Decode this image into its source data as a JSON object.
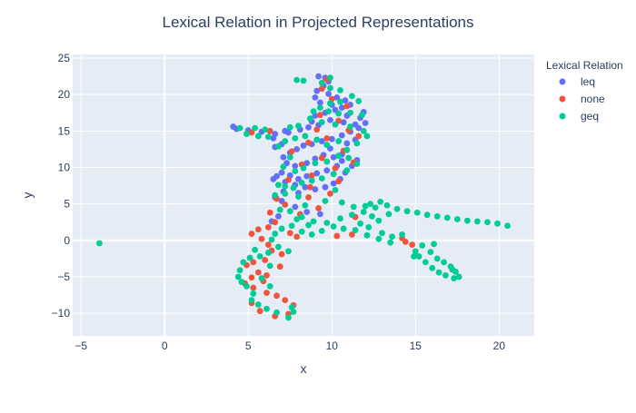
{
  "chart_data": {
    "type": "scatter",
    "title": "Lexical Relation in Projected Representations",
    "xlabel": "x",
    "ylabel": "y",
    "xlim": [
      -5.5,
      22.1
    ],
    "ylim": [
      -13.1,
      25.5
    ],
    "xticks": [
      -5,
      0,
      5,
      10,
      15,
      20
    ],
    "yticks": [
      -10,
      -5,
      0,
      5,
      10,
      15,
      20,
      25
    ],
    "grid": true,
    "plot_background": "#e5ecf6",
    "legend": {
      "title": "Lexical Relation",
      "placement": "right"
    },
    "series": [
      {
        "name": "leq",
        "color": "#636efa",
        "points": [
          [
            9.2,
            22.5
          ],
          [
            9.6,
            22.3
          ],
          [
            9.8,
            21.8
          ],
          [
            9.5,
            21.2
          ],
          [
            9.1,
            20.5
          ],
          [
            9.8,
            20.1
          ],
          [
            10.3,
            19.6
          ],
          [
            10.8,
            19.2
          ],
          [
            11.1,
            18.6
          ],
          [
            10.6,
            18.2
          ],
          [
            10.2,
            17.9
          ],
          [
            9.6,
            17.5
          ],
          [
            9.0,
            17.1
          ],
          [
            8.8,
            16.3
          ],
          [
            9.2,
            15.8
          ],
          [
            9.9,
            16.5
          ],
          [
            10.7,
            16.2
          ],
          [
            11.4,
            15.9
          ],
          [
            11.7,
            16.8
          ],
          [
            11.9,
            17.6
          ],
          [
            12.0,
            16.1
          ],
          [
            11.6,
            15.4
          ],
          [
            11.1,
            14.9
          ],
          [
            10.6,
            14.4
          ],
          [
            10.0,
            13.9
          ],
          [
            9.4,
            13.6
          ],
          [
            8.8,
            13.2
          ],
          [
            8.3,
            13.0
          ],
          [
            7.9,
            12.5
          ],
          [
            7.5,
            12.0
          ],
          [
            7.1,
            11.4
          ],
          [
            7.3,
            10.6
          ],
          [
            7.8,
            10.2
          ],
          [
            8.5,
            10.6
          ],
          [
            9.0,
            11.2
          ],
          [
            9.5,
            11.7
          ],
          [
            10.1,
            11.4
          ],
          [
            10.6,
            10.9
          ],
          [
            10.3,
            10.2
          ],
          [
            9.7,
            9.6
          ],
          [
            9.1,
            9.2
          ],
          [
            8.5,
            8.8
          ],
          [
            8.0,
            8.4
          ],
          [
            7.5,
            8.9
          ],
          [
            7.0,
            9.3
          ],
          [
            6.7,
            8.8
          ],
          [
            7.2,
            8.0
          ],
          [
            7.8,
            7.6
          ],
          [
            8.4,
            7.3
          ],
          [
            9.0,
            7.0
          ],
          [
            9.6,
            7.3
          ],
          [
            10.1,
            7.8
          ],
          [
            10.5,
            8.4
          ],
          [
            10.8,
            9.3
          ],
          [
            11.2,
            10.2
          ],
          [
            11.5,
            11.0
          ],
          [
            8.6,
            15.5
          ],
          [
            8.1,
            15.2
          ],
          [
            7.4,
            14.8
          ],
          [
            6.6,
            14.6
          ],
          [
            5.8,
            14.9
          ],
          [
            5.0,
            15.1
          ],
          [
            4.3,
            15.3
          ],
          [
            4.1,
            15.6
          ],
          [
            7.0,
            13.2
          ],
          [
            6.6,
            12.8
          ],
          [
            6.5,
            14.0
          ],
          [
            7.2,
            15.0
          ],
          [
            6.5,
            8.4
          ],
          [
            6.6,
            5.9
          ],
          [
            7.0,
            5.4
          ],
          [
            7.8,
            4.6
          ],
          [
            8.5,
            3.9
          ],
          [
            9.3,
            3.6
          ],
          [
            8.0,
            6.5
          ],
          [
            7.1,
            6.7
          ],
          [
            6.8,
            3.3
          ],
          [
            6.4,
            2.6
          ],
          [
            10.6,
            11.8
          ],
          [
            9.9,
            12.6
          ],
          [
            11.4,
            13.8
          ],
          [
            10.9,
            13.3
          ],
          [
            10.0,
            18.6
          ],
          [
            9.3,
            18.9
          ],
          [
            9.0,
            19.6
          ],
          [
            10.9,
            17.1
          ]
        ]
      },
      {
        "name": "none",
        "color": "#ef553b",
        "points": [
          [
            9.7,
            22.1
          ],
          [
            9.4,
            20.8
          ],
          [
            10.0,
            19.4
          ],
          [
            10.9,
            18.4
          ],
          [
            9.3,
            17.2
          ],
          [
            10.4,
            16.4
          ],
          [
            11.0,
            15.1
          ],
          [
            9.7,
            14.0
          ],
          [
            8.6,
            13.4
          ],
          [
            7.6,
            12.2
          ],
          [
            8.2,
            10.4
          ],
          [
            9.4,
            11.3
          ],
          [
            10.2,
            9.9
          ],
          [
            8.8,
            8.9
          ],
          [
            7.4,
            8.3
          ],
          [
            8.7,
            7.3
          ],
          [
            10.4,
            8.1
          ],
          [
            6.3,
            15.0
          ],
          [
            5.2,
            14.8
          ],
          [
            6.7,
            5.7
          ],
          [
            7.2,
            4.9
          ],
          [
            6.3,
            3.8
          ],
          [
            6.6,
            2.5
          ],
          [
            6.2,
            1.8
          ],
          [
            5.6,
            1.5
          ],
          [
            5.2,
            0.9
          ],
          [
            5.8,
            0.2
          ],
          [
            6.2,
            -0.6
          ],
          [
            6.4,
            -1.4
          ],
          [
            7.0,
            -1.9
          ],
          [
            6.0,
            -2.7
          ],
          [
            5.3,
            -3.0
          ],
          [
            4.9,
            -3.4
          ],
          [
            5.6,
            -4.4
          ],
          [
            5.2,
            -5.1
          ],
          [
            6.1,
            -4.8
          ],
          [
            4.8,
            -5.9
          ],
          [
            5.3,
            -6.5
          ],
          [
            6.1,
            -7.2
          ],
          [
            6.7,
            -7.6
          ],
          [
            7.2,
            -8.2
          ],
          [
            7.7,
            -8.9
          ],
          [
            7.4,
            -10.1
          ],
          [
            6.6,
            -10.4
          ],
          [
            5.7,
            -9.7
          ],
          [
            5.2,
            -8.6
          ],
          [
            7.5,
            1.0
          ],
          [
            7.9,
            0.5
          ],
          [
            10.3,
            0.6
          ],
          [
            11.2,
            0.8
          ],
          [
            14.2,
            0.3
          ],
          [
            14.8,
            -0.6
          ],
          [
            14.4,
            -0.2
          ],
          [
            11.4,
            3.2
          ],
          [
            8.1,
            3.6
          ],
          [
            9.2,
            4.4
          ],
          [
            8.6,
            5.9
          ],
          [
            9.9,
            6.4
          ],
          [
            10.7,
            12.3
          ],
          [
            11.3,
            10.7
          ],
          [
            9.1,
            15.2
          ],
          [
            11.6,
            14.3
          ],
          [
            6.9,
            -3.6
          ],
          [
            5.9,
            -5.6
          ]
        ]
      },
      {
        "name": "geq",
        "color": "#00cc96",
        "points": [
          [
            7.9,
            22.0
          ],
          [
            8.3,
            21.9
          ],
          [
            9.9,
            22.3
          ],
          [
            9.4,
            21.6
          ],
          [
            9.9,
            20.9
          ],
          [
            10.5,
            20.6
          ],
          [
            11.2,
            19.8
          ],
          [
            11.6,
            19.1
          ],
          [
            10.5,
            19.0
          ],
          [
            9.9,
            18.8
          ],
          [
            9.3,
            18.2
          ],
          [
            8.9,
            17.7
          ],
          [
            9.8,
            17.7
          ],
          [
            10.4,
            17.4
          ],
          [
            11.1,
            17.5
          ],
          [
            11.8,
            17.2
          ],
          [
            8.7,
            16.7
          ],
          [
            9.4,
            16.2
          ],
          [
            10.2,
            15.9
          ],
          [
            11.1,
            15.6
          ],
          [
            11.9,
            15.0
          ],
          [
            12.1,
            14.3
          ],
          [
            11.5,
            13.3
          ],
          [
            10.9,
            12.4
          ],
          [
            10.4,
            13.6
          ],
          [
            9.7,
            13.1
          ],
          [
            9.1,
            13.8
          ],
          [
            8.4,
            14.3
          ],
          [
            7.8,
            14.0
          ],
          [
            7.2,
            13.6
          ],
          [
            6.8,
            12.9
          ],
          [
            6.2,
            14.2
          ],
          [
            5.6,
            14.3
          ],
          [
            4.9,
            14.6
          ],
          [
            4.5,
            15.4
          ],
          [
            5.4,
            15.4
          ],
          [
            6.0,
            15.2
          ],
          [
            7.5,
            15.5
          ],
          [
            8.0,
            15.7
          ],
          [
            7.5,
            11.4
          ],
          [
            7.1,
            10.1
          ],
          [
            7.8,
            9.5
          ],
          [
            8.3,
            9.9
          ],
          [
            9.0,
            10.6
          ],
          [
            9.7,
            10.8
          ],
          [
            10.4,
            11.6
          ],
          [
            11.0,
            11.3
          ],
          [
            11.5,
            10.5
          ],
          [
            10.9,
            9.6
          ],
          [
            10.1,
            9.1
          ],
          [
            9.4,
            8.5
          ],
          [
            8.8,
            8.2
          ],
          [
            8.2,
            7.9
          ],
          [
            7.7,
            7.2
          ],
          [
            7.2,
            7.4
          ],
          [
            6.8,
            7.6
          ],
          [
            7.2,
            6.4
          ],
          [
            6.6,
            6.2
          ],
          [
            6.9,
            4.2
          ],
          [
            7.5,
            4.0
          ],
          [
            8.2,
            3.2
          ],
          [
            8.9,
            2.6
          ],
          [
            9.7,
            2.4
          ],
          [
            10.5,
            3.0
          ],
          [
            11.2,
            3.5
          ],
          [
            11.9,
            3.9
          ],
          [
            12.6,
            4.5
          ],
          [
            13.3,
            4.8
          ],
          [
            13.9,
            4.3
          ],
          [
            14.5,
            4.0
          ],
          [
            15.1,
            3.8
          ],
          [
            15.7,
            3.5
          ],
          [
            16.3,
            3.3
          ],
          [
            16.9,
            3.1
          ],
          [
            17.5,
            2.9
          ],
          [
            18.1,
            2.7
          ],
          [
            18.7,
            2.6
          ],
          [
            19.3,
            2.5
          ],
          [
            19.9,
            2.3
          ],
          [
            20.5,
            2.0
          ],
          [
            12.9,
            5.3
          ],
          [
            12.3,
            5.0
          ],
          [
            13.4,
            3.6
          ],
          [
            12.8,
            2.7
          ],
          [
            12.2,
            1.8
          ],
          [
            13.0,
            1.0
          ],
          [
            13.6,
            0.5
          ],
          [
            14.2,
            0.8
          ],
          [
            13.5,
            -0.3
          ],
          [
            12.8,
            0.2
          ],
          [
            12.1,
            0.7
          ],
          [
            11.4,
            1.4
          ],
          [
            10.7,
            1.6
          ],
          [
            10.1,
            1.9
          ],
          [
            9.4,
            1.3
          ],
          [
            8.8,
            0.8
          ],
          [
            8.2,
            1.2
          ],
          [
            7.6,
            2.0
          ],
          [
            7.0,
            1.6
          ],
          [
            6.6,
            0.9
          ],
          [
            6.4,
            0.1
          ],
          [
            6.8,
            -0.9
          ],
          [
            7.4,
            -1.5
          ],
          [
            6.2,
            -1.7
          ],
          [
            5.7,
            -2.2
          ],
          [
            5.1,
            -2.4
          ],
          [
            4.7,
            -3.0
          ],
          [
            4.5,
            -4.1
          ],
          [
            4.4,
            -5.0
          ],
          [
            4.6,
            -5.7
          ],
          [
            4.9,
            -6.3
          ],
          [
            5.3,
            -7.3
          ],
          [
            5.2,
            -8.2
          ],
          [
            5.6,
            -8.8
          ],
          [
            6.1,
            -9.4
          ],
          [
            6.7,
            -9.9
          ],
          [
            7.4,
            -10.6
          ],
          [
            7.7,
            -9.8
          ],
          [
            7.6,
            -9.2
          ],
          [
            6.3,
            -6.3
          ],
          [
            5.8,
            -5.2
          ],
          [
            6.3,
            -3.5
          ],
          [
            5.4,
            -1.3
          ],
          [
            15.0,
            -1.5
          ],
          [
            15.4,
            -0.7
          ],
          [
            15.9,
            -1.6
          ],
          [
            16.3,
            -2.5
          ],
          [
            16.7,
            -3.0
          ],
          [
            17.1,
            -3.6
          ],
          [
            17.4,
            -4.3
          ],
          [
            17.6,
            -5.0
          ],
          [
            17.3,
            -5.2
          ],
          [
            16.8,
            -4.8
          ],
          [
            16.4,
            -4.4
          ],
          [
            16.0,
            -3.8
          ],
          [
            15.6,
            -3.0
          ],
          [
            15.2,
            -2.2
          ],
          [
            14.9,
            -2.2
          ],
          [
            16.1,
            -0.5
          ],
          [
            17.2,
            -4.0
          ],
          [
            10.6,
            5.2
          ],
          [
            11.3,
            4.6
          ],
          [
            12.4,
            3.3
          ],
          [
            11.7,
            2.3
          ],
          [
            12.0,
            4.7
          ],
          [
            8.6,
            2.1
          ],
          [
            7.9,
            2.9
          ],
          [
            8.4,
            4.8
          ],
          [
            9.6,
            5.4
          ],
          [
            10.2,
            6.9
          ],
          [
            8.0,
            6.0
          ],
          [
            -3.9,
            -0.4
          ]
        ]
      }
    ]
  }
}
